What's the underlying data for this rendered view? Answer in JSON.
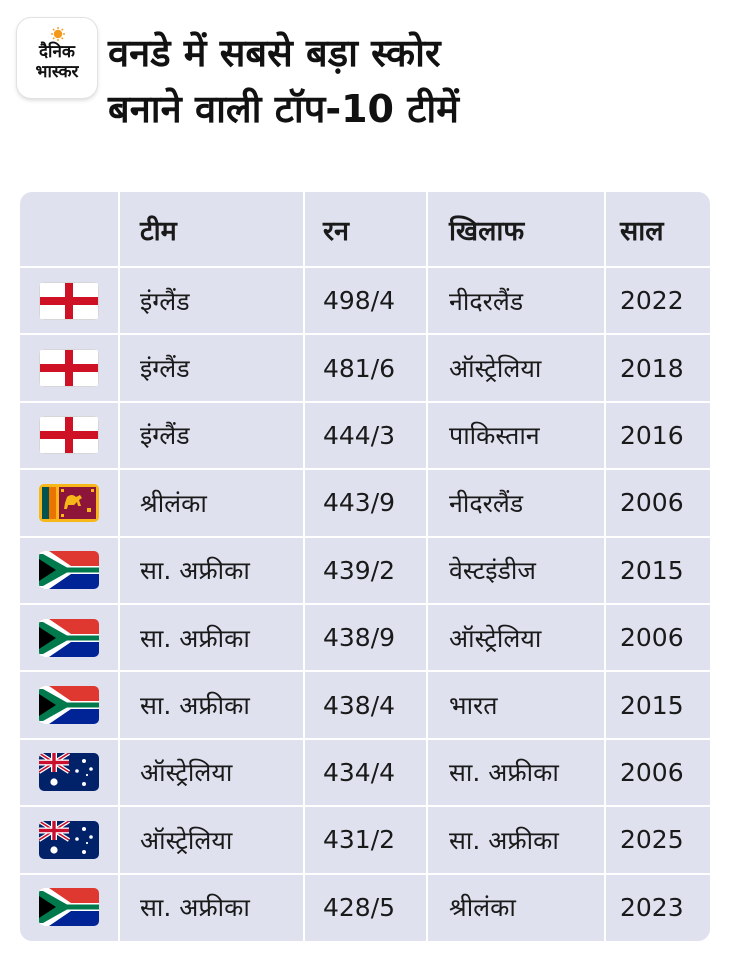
{
  "brand": {
    "line1": "दैनिक",
    "line2": "भास्कर"
  },
  "title": {
    "line1": "वनडे में सबसे बड़ा स्कोर",
    "line2": "बनाने वाली टॉप-10 टीमें"
  },
  "table": {
    "headers": {
      "team": "टीम",
      "runs": "रन",
      "opponent": "खिलाफ",
      "year": "साल"
    },
    "rows": [
      {
        "flag": "england-flag-icon",
        "team": "इंग्लैंड",
        "runs": "498/4",
        "opponent": "नीदरलैंड",
        "year": "2022"
      },
      {
        "flag": "england-flag-icon",
        "team": "इंग्लैंड",
        "runs": "481/6",
        "opponent": "ऑस्ट्रेलिया",
        "year": "2018"
      },
      {
        "flag": "england-flag-icon",
        "team": "इंग्लैंड",
        "runs": "444/3",
        "opponent": "पाकिस्तान",
        "year": "2016"
      },
      {
        "flag": "srilanka-flag-icon",
        "team": "श्रीलंका",
        "runs": "443/9",
        "opponent": "नीदरलैंड",
        "year": "2006"
      },
      {
        "flag": "south-africa-flag-icon",
        "team": "सा. अफ्रीका",
        "runs": "439/2",
        "opponent": "वेस्टइंडीज",
        "year": "2015"
      },
      {
        "flag": "south-africa-flag-icon",
        "team": "सा. अफ्रीका",
        "runs": "438/9",
        "opponent": "ऑस्ट्रेलिया",
        "year": "2006"
      },
      {
        "flag": "south-africa-flag-icon",
        "team": "सा. अफ्रीका",
        "runs": "438/4",
        "opponent": "भारत",
        "year": "2015"
      },
      {
        "flag": "australia-flag-icon",
        "team": "ऑस्ट्रेलिया",
        "runs": "434/4",
        "opponent": "सा. अफ्रीका",
        "year": "2006"
      },
      {
        "flag": "australia-flag-icon",
        "team": "ऑस्ट्रेलिया",
        "runs": "431/2",
        "opponent": "सा. अफ्रीका",
        "year": "2025"
      },
      {
        "flag": "south-africa-flag-icon",
        "team": "सा. अफ्रीका",
        "runs": "428/5",
        "opponent": "श्रीलंका",
        "year": "2023"
      }
    ]
  }
}
